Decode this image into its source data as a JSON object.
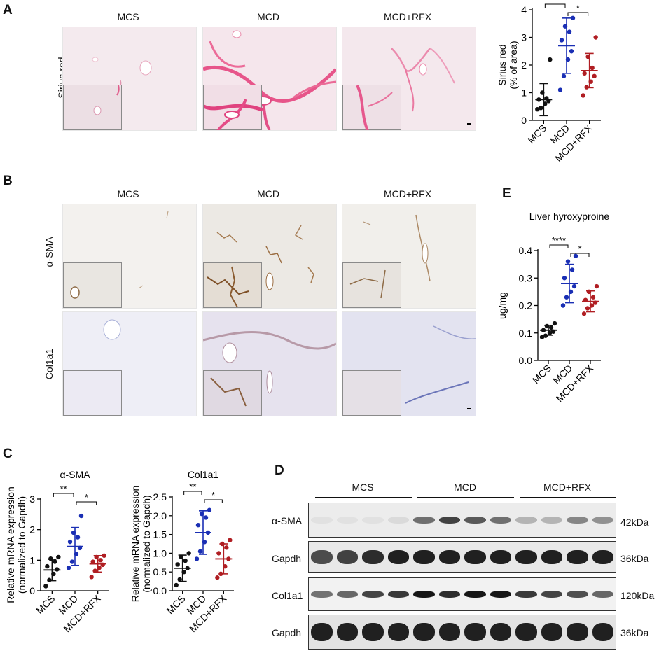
{
  "panels": {
    "A": "A",
    "B": "B",
    "C": "C",
    "D": "D",
    "E": "E"
  },
  "groups": [
    "MCS",
    "MCD",
    "MCD+RFX"
  ],
  "group_colors": [
    "#111111",
    "#1a2fb4",
    "#b01e23"
  ],
  "rows": {
    "sirius": "Sirius red",
    "asma": "α-SMA",
    "col1a1": "Col1a1"
  },
  "blot": {
    "group_labels": [
      "MCS",
      "MCD",
      "MCD+RFX"
    ],
    "rows": [
      {
        "label": "α-SMA",
        "kda": "42kDa"
      },
      {
        "label": "Gapdh",
        "kda": "36kDa"
      },
      {
        "label": "Col1a1",
        "kda": "120kDa"
      },
      {
        "label": "Gapdh",
        "kda": "36kDa"
      }
    ]
  },
  "chart_data": [
    {
      "id": "sirius",
      "type": "scatter",
      "title": "",
      "ylabel": "Sirius red\n(% of area)",
      "categories": [
        "MCS",
        "MCD",
        "MCD+RFX"
      ],
      "ylim": [
        0,
        4
      ],
      "yticks": [
        0,
        1,
        2,
        3,
        4
      ],
      "ytick_labels": [
        "0",
        "1",
        "2",
        "3",
        "4"
      ],
      "series": [
        {
          "values": [
            0.4,
            0.45,
            0.6,
            0.7,
            0.75,
            0.8,
            1.0,
            2.2
          ],
          "mean": 0.75,
          "sd": 0.58
        },
        {
          "values": [
            1.1,
            1.6,
            2.2,
            2.5,
            2.9,
            3.2,
            3.4,
            3.7
          ],
          "mean": 2.7,
          "sd": 1.0
        },
        {
          "values": [
            0.9,
            1.2,
            1.4,
            1.6,
            1.7,
            1.9,
            2.3,
            3.0
          ],
          "mean": 1.8,
          "sd": 0.62
        }
      ],
      "significance": [
        {
          "from": 0,
          "to": 1,
          "label": "***"
        },
        {
          "from": 1,
          "to": 2,
          "label": "*"
        }
      ]
    },
    {
      "id": "hyp",
      "type": "scatter",
      "title": "Liver hyroxyproine",
      "ylabel": "ug/mg",
      "categories": [
        "MCS",
        "MCD",
        "MCD+RFX"
      ],
      "ylim": [
        0,
        0.4
      ],
      "yticks": [
        0,
        0.1,
        0.2,
        0.3,
        0.4
      ],
      "ytick_labels": [
        "0.0",
        "0.1",
        "0.2",
        "0.3",
        "0.4"
      ],
      "series": [
        {
          "values": [
            0.085,
            0.09,
            0.1,
            0.105,
            0.11,
            0.12,
            0.125,
            0.135
          ],
          "mean": 0.11,
          "sd": 0.018
        },
        {
          "values": [
            0.2,
            0.23,
            0.25,
            0.27,
            0.3,
            0.33,
            0.36,
            0.38
          ],
          "mean": 0.28,
          "sd": 0.07
        },
        {
          "values": [
            0.17,
            0.19,
            0.2,
            0.21,
            0.22,
            0.23,
            0.25,
            0.27
          ],
          "mean": 0.215,
          "sd": 0.038
        }
      ],
      "significance": [
        {
          "from": 0,
          "to": 1,
          "label": "****"
        },
        {
          "from": 1,
          "to": 2,
          "label": "*"
        }
      ]
    },
    {
      "id": "asma",
      "type": "scatter",
      "title": "α-SMA",
      "ylabel": "Relative mRNA expression\n(normalized to Gapdh)",
      "categories": [
        "MCS",
        "MCD",
        "MCD+RFX"
      ],
      "ylim": [
        0,
        3
      ],
      "yticks": [
        0,
        1,
        2,
        3
      ],
      "ytick_labels": [
        "0",
        "1",
        "2",
        "3"
      ],
      "series": [
        {
          "values": [
            0.15,
            0.35,
            0.55,
            0.7,
            0.8,
            0.95,
            1.05,
            1.1
          ],
          "mean": 0.68,
          "sd": 0.35
        },
        {
          "values": [
            0.75,
            0.95,
            1.2,
            1.4,
            1.6,
            1.75,
            1.9,
            2.45
          ],
          "mean": 1.45,
          "sd": 0.62
        },
        {
          "values": [
            0.45,
            0.65,
            0.75,
            0.85,
            0.95,
            1.0,
            1.1,
            1.15
          ],
          "mean": 0.88,
          "sd": 0.27
        }
      ],
      "significance": [
        {
          "from": 0,
          "to": 1,
          "label": "**"
        },
        {
          "from": 1,
          "to": 2,
          "label": "*"
        }
      ]
    },
    {
      "id": "col",
      "type": "scatter",
      "title": "Col1a1",
      "ylabel": "Relative mRNA expression\n(normalized to Gapdh)",
      "categories": [
        "MCS",
        "MCD",
        "MCD+RFX"
      ],
      "ylim": [
        0,
        2.5
      ],
      "yticks": [
        0,
        0.5,
        1.0,
        1.5,
        2.0,
        2.5
      ],
      "ytick_labels": [
        "0.0",
        "0.5",
        "1.0",
        "1.5",
        "2.0",
        "2.5"
      ],
      "series": [
        {
          "values": [
            0.15,
            0.3,
            0.5,
            0.6,
            0.7,
            0.8,
            0.9,
            1.0
          ],
          "mean": 0.6,
          "sd": 0.35
        },
        {
          "values": [
            0.85,
            1.05,
            1.3,
            1.55,
            1.75,
            1.95,
            2.05,
            2.15
          ],
          "mean": 1.55,
          "sd": 0.58
        },
        {
          "values": [
            0.35,
            0.45,
            0.65,
            0.85,
            1.0,
            1.15,
            1.25,
            1.35
          ],
          "mean": 0.85,
          "sd": 0.4
        }
      ],
      "significance": [
        {
          "from": 0,
          "to": 1,
          "label": "**"
        },
        {
          "from": 1,
          "to": 2,
          "label": "*"
        }
      ]
    }
  ]
}
